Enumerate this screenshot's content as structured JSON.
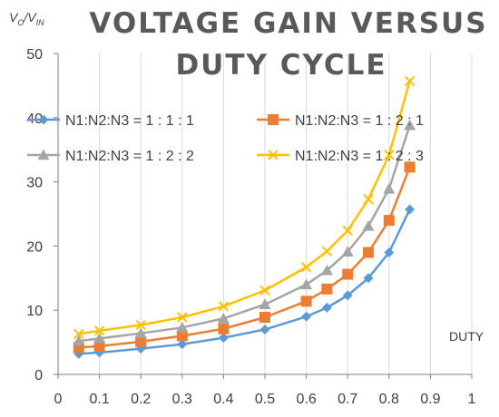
{
  "chart_data": {
    "type": "line",
    "title_lines": [
      "VOLTAGE GAIN VERSUS",
      "DUTY CYCLE"
    ],
    "xlabel": "DUTY",
    "ylabel": {
      "v": "V",
      "o": "O",
      "slash": "/V",
      "in": "IN"
    },
    "xlim": [
      0,
      1
    ],
    "ylim": [
      0,
      50
    ],
    "xticks": [
      0,
      0.1,
      0.2,
      0.3,
      0.4,
      0.5,
      0.6,
      0.7,
      0.8,
      0.9,
      1
    ],
    "xtick_labels": [
      "0",
      "0.1",
      "0.2",
      "0.3",
      "0.4",
      "0.5",
      "0.6",
      "0.7",
      "0.8",
      "0.9",
      "1"
    ],
    "yticks": [
      0,
      10,
      20,
      30,
      40,
      50
    ],
    "ytick_labels": [
      "0",
      "10",
      "20",
      "30",
      "40",
      "50"
    ],
    "grid": "vertical",
    "legend_position": "upper-left",
    "x": [
      0.05,
      0.1,
      0.2,
      0.3,
      0.4,
      0.5,
      0.6,
      0.65,
      0.7,
      0.75,
      0.8,
      0.85
    ],
    "series": [
      {
        "name": "N1:N2:N3 = 1 : 1 : 1",
        "color": "#5B9BD5",
        "marker": "diamond",
        "values": [
          3.2,
          3.4,
          4.0,
          4.7,
          5.7,
          7.0,
          9.0,
          10.4,
          12.3,
          15.0,
          19.0,
          25.7
        ]
      },
      {
        "name": "N1:N2:N3 = 1 : 2 : 1",
        "color": "#ED7D31",
        "marker": "square",
        "values": [
          4.2,
          4.4,
          5.1,
          6.0,
          7.1,
          8.9,
          11.4,
          13.3,
          15.6,
          19.0,
          24.0,
          32.3
        ]
      },
      {
        "name": "N1:N2:N3 = 1 : 2 : 2",
        "color": "#A5A5A5",
        "marker": "triangle",
        "values": [
          5.2,
          5.6,
          6.4,
          7.3,
          8.7,
          10.9,
          14.0,
          16.2,
          19.1,
          23.1,
          28.9,
          38.8
        ]
      },
      {
        "name": "N1:N2:N3 = 1 : 2 : 3",
        "color": "#FFC000",
        "marker": "x",
        "values": [
          6.3,
          6.8,
          7.7,
          8.9,
          10.6,
          13.1,
          16.7,
          19.2,
          22.4,
          27.3,
          34.2,
          45.7
        ]
      }
    ]
  }
}
